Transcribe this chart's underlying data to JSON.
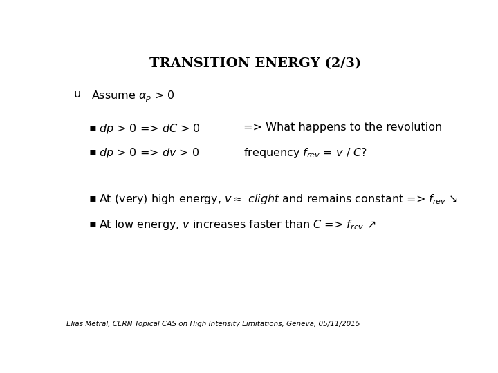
{
  "title": "TRANSITION ENERGY (2/3)",
  "title_fontsize": 14,
  "background_color": "#ffffff",
  "text_color": "#000000",
  "footer": "Elias Métral, CERN Topical CAS on High Intensity Limitations, Geneva, 05/11/2015",
  "footer_fontsize": 7.5,
  "arrow_down": "↘",
  "arrow_up": "↗"
}
